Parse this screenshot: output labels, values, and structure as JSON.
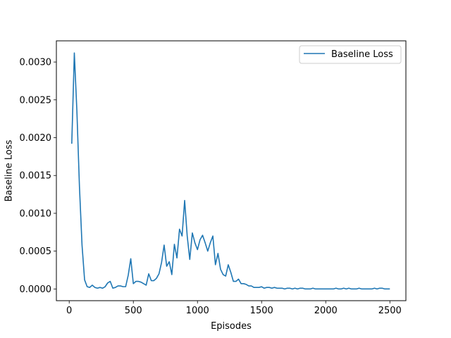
{
  "chart_data": {
    "type": "line",
    "title": "",
    "xlabel": "Episodes",
    "ylabel": "Baseline Loss",
    "xlim": [
      -100,
      2625
    ],
    "ylim": [
      -0.000155,
      0.00328
    ],
    "xticks": [
      0,
      500,
      1000,
      1500,
      2000,
      2500
    ],
    "xtick_labels": [
      "0",
      "500",
      "1000",
      "1500",
      "2000",
      "2500"
    ],
    "yticks": [
      0.0,
      0.0005,
      0.001,
      0.0015,
      0.002,
      0.0025,
      0.003
    ],
    "ytick_labels": [
      "0.0000",
      "0.0005",
      "0.0010",
      "0.0015",
      "0.0020",
      "0.0025",
      "0.0030"
    ],
    "grid": false,
    "legend_position": "top-right",
    "series": [
      {
        "name": "Baseline Loss",
        "color": "#1f77b4",
        "x": [
          20,
          40,
          60,
          80,
          100,
          120,
          140,
          160,
          180,
          200,
          220,
          240,
          260,
          280,
          300,
          320,
          340,
          360,
          380,
          400,
          420,
          440,
          460,
          480,
          500,
          520,
          540,
          560,
          580,
          600,
          620,
          640,
          660,
          680,
          700,
          720,
          740,
          760,
          780,
          800,
          820,
          840,
          860,
          880,
          900,
          920,
          940,
          960,
          980,
          1000,
          1020,
          1040,
          1060,
          1080,
          1100,
          1120,
          1140,
          1160,
          1180,
          1200,
          1220,
          1240,
          1260,
          1280,
          1300,
          1320,
          1340,
          1360,
          1380,
          1400,
          1420,
          1440,
          1460,
          1480,
          1500,
          1520,
          1540,
          1560,
          1580,
          1600,
          1620,
          1640,
          1660,
          1680,
          1700,
          1720,
          1740,
          1760,
          1780,
          1800,
          1820,
          1840,
          1860,
          1880,
          1900,
          1920,
          1940,
          1960,
          1980,
          2000,
          2020,
          2040,
          2060,
          2080,
          2100,
          2120,
          2140,
          2160,
          2180,
          2200,
          2220,
          2240,
          2260,
          2280,
          2300,
          2320,
          2340,
          2360,
          2380,
          2400,
          2420,
          2440,
          2460,
          2480,
          2500
        ],
        "y": [
          0.00192,
          0.00312,
          0.00235,
          0.00135,
          0.00058,
          0.00012,
          3e-05,
          2e-05,
          5e-05,
          2e-05,
          1e-05,
          2e-05,
          1e-05,
          3e-05,
          8e-05,
          0.0001,
          1e-05,
          2e-05,
          4e-05,
          4e-05,
          3e-05,
          3e-05,
          0.00018,
          0.0004,
          7e-05,
          0.0001,
          0.0001,
          9e-05,
          7e-05,
          5e-05,
          0.0002,
          0.00011,
          0.00011,
          0.00014,
          0.0002,
          0.00035,
          0.00058,
          0.0003,
          0.00036,
          0.00019,
          0.00059,
          0.00041,
          0.00079,
          0.0007,
          0.00117,
          0.0007,
          0.00039,
          0.00074,
          0.00061,
          0.00052,
          0.00065,
          0.00071,
          0.00061,
          0.0005,
          0.00061,
          0.0007,
          0.00032,
          0.00047,
          0.00026,
          0.00019,
          0.00017,
          0.00032,
          0.00022,
          0.0001,
          0.0001,
          0.00013,
          7e-05,
          7e-05,
          6e-05,
          4e-05,
          4e-05,
          2e-05,
          2e-05,
          2e-05,
          3e-05,
          1e-05,
          2e-05,
          2e-05,
          1e-05,
          2e-05,
          1e-05,
          1e-05,
          1e-05,
          0.0,
          1e-05,
          1e-05,
          0.0,
          1e-05,
          0.0,
          1e-05,
          1e-05,
          0.0,
          0.0,
          0.0,
          1e-05,
          0.0,
          0.0,
          0.0,
          0.0,
          0.0,
          0.0,
          0.0,
          0.0,
          1e-05,
          0.0,
          0.0,
          1e-05,
          0.0,
          1e-05,
          0.0,
          0.0,
          0.0,
          1e-05,
          0.0,
          0.0,
          0.0,
          0.0,
          0.0,
          1e-05,
          0.0,
          1e-05,
          1e-05,
          0.0,
          0.0,
          0.0
        ]
      }
    ]
  }
}
